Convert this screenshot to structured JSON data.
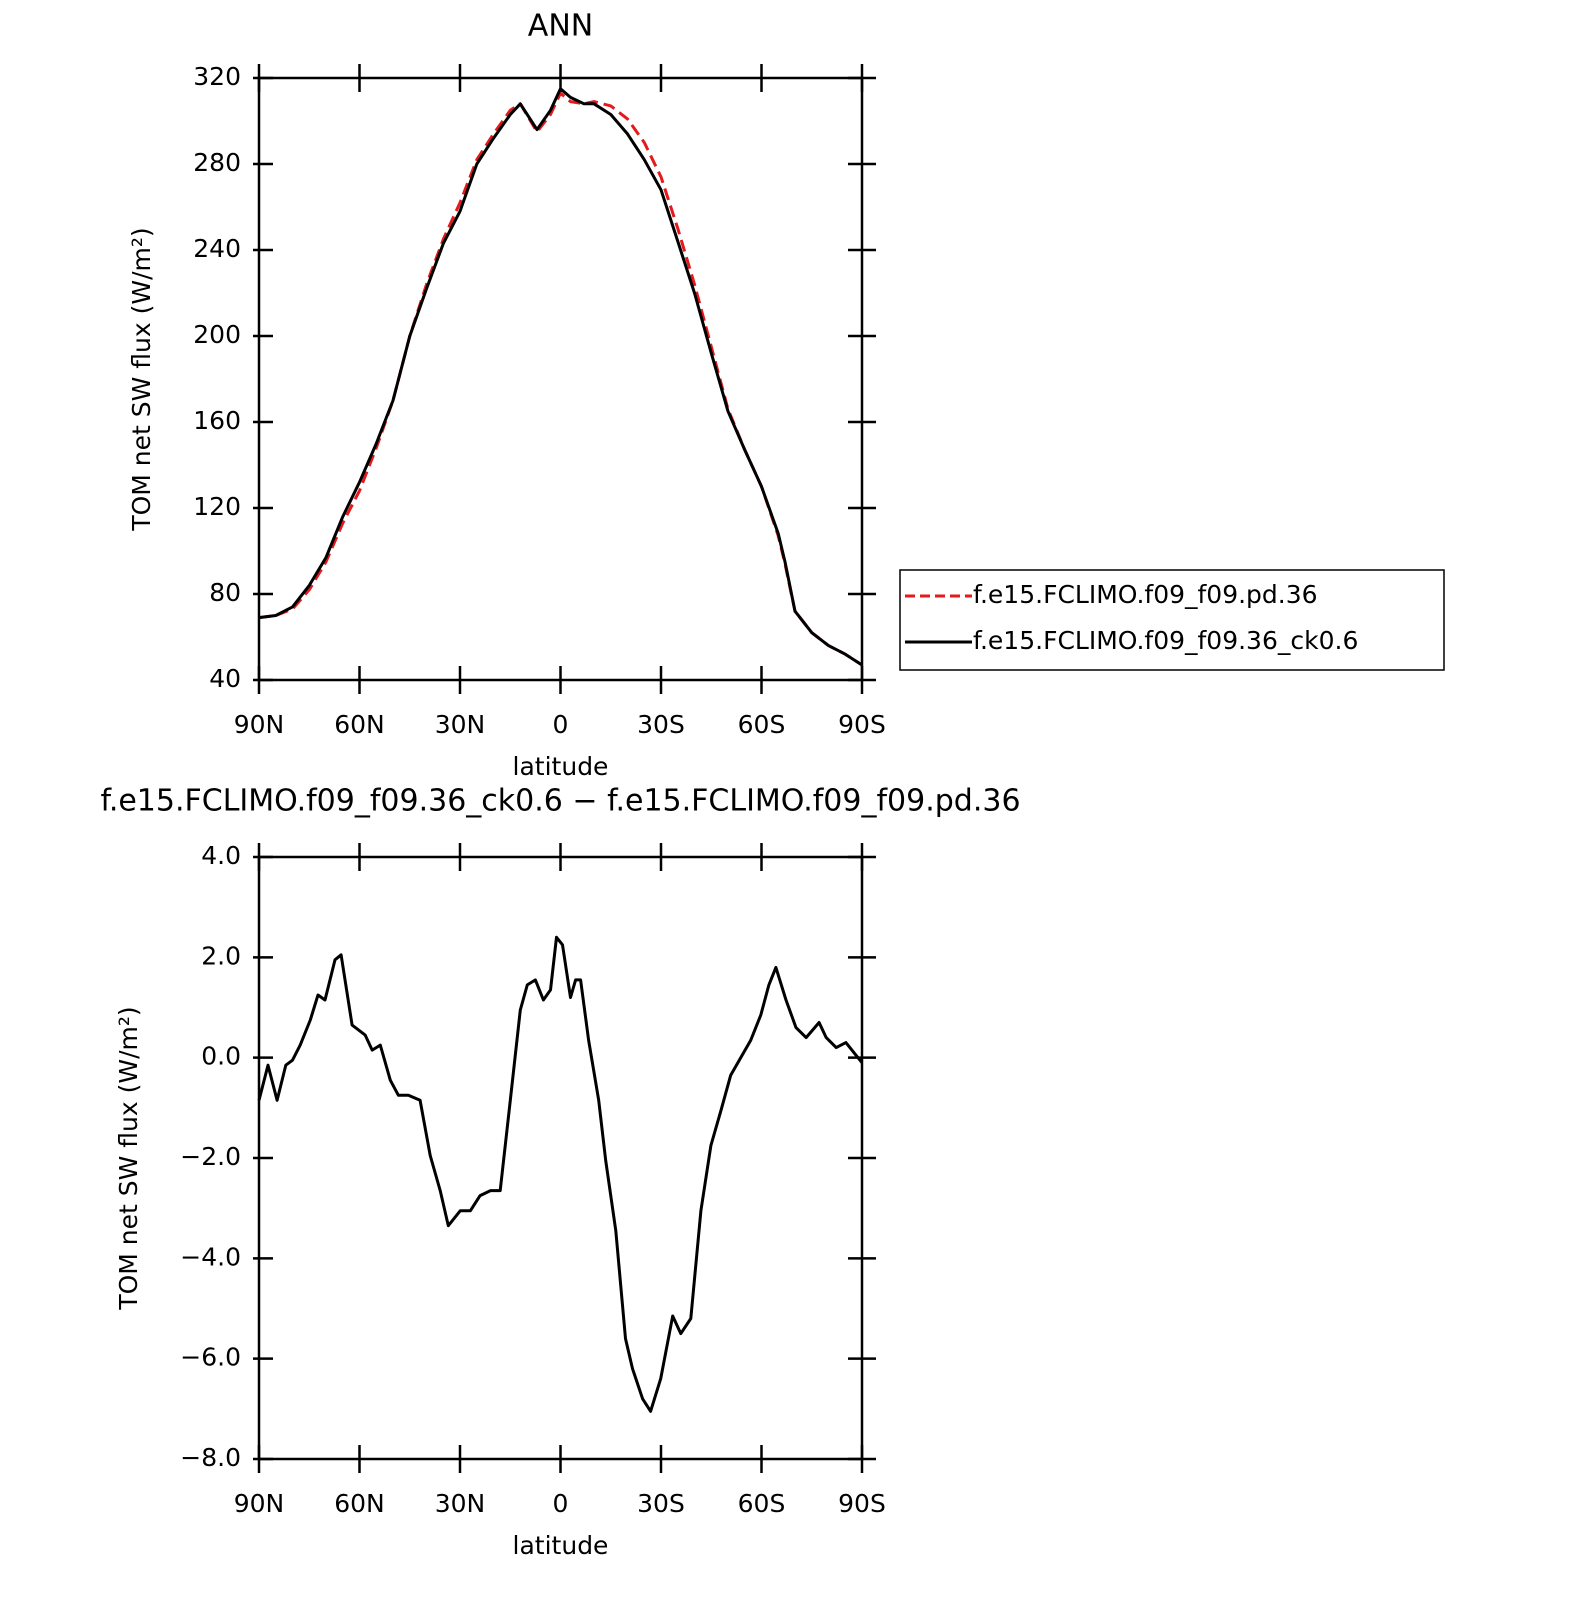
{
  "chart_data": [
    {
      "type": "line",
      "title": "ANN",
      "xlabel": "latitude",
      "ylabel": "TOM net SW flux (W/m²)",
      "x": [
        90,
        85,
        80,
        75,
        70,
        65,
        60,
        55,
        50,
        45,
        40,
        35,
        30,
        25,
        20,
        15,
        12,
        7,
        3,
        0,
        -3,
        -7,
        -10,
        -15,
        -20,
        -25,
        -30,
        -35,
        -40,
        -45,
        -50,
        -55,
        -60,
        -65,
        -67,
        -70,
        -75,
        -80,
        -85,
        -90
      ],
      "series": [
        {
          "name": "f.e15.FCLIMO.f09_f09.pd.36",
          "color": "#e41a1c",
          "linestyle": "dashed",
          "values": [
            69,
            70,
            73,
            82,
            95,
            113,
            128,
            148,
            170,
            200,
            224,
            245,
            262,
            282,
            294,
            305,
            308,
            295,
            303,
            313,
            309,
            308,
            309,
            307,
            301,
            290,
            274,
            250,
            224,
            195,
            166,
            147,
            130,
            107,
            94,
            72,
            62,
            56,
            52,
            47
          ]
        },
        {
          "name": "f.e15.FCLIMO.f09_f09.36_ck0.6",
          "color": "#000000",
          "linestyle": "solid",
          "values": [
            69,
            70,
            74,
            84,
            97,
            116,
            132,
            150,
            170,
            200,
            222,
            243,
            258,
            280,
            292,
            303,
            308,
            296,
            305,
            315,
            311,
            308,
            308,
            303,
            294,
            282,
            268,
            244,
            220,
            192,
            165,
            147,
            130,
            108,
            95,
            72,
            62,
            56,
            52,
            47
          ]
        }
      ],
      "xlim": [
        90,
        -90
      ],
      "xticks": [
        {
          "value": 90,
          "label": "90N"
        },
        {
          "value": 60,
          "label": "60N"
        },
        {
          "value": 30,
          "label": "30N"
        },
        0,
        {
          "value": -30,
          "label": "30S"
        },
        {
          "value": -60,
          "label": "60S"
        },
        {
          "value": -90,
          "label": "90S"
        }
      ],
      "ylim": [
        40,
        320
      ],
      "yticks": [
        40,
        80,
        120,
        160,
        200,
        240,
        280,
        320
      ],
      "legend": "right"
    },
    {
      "type": "line",
      "title": "f.e15.FCLIMO.f09_f09.36_ck0.6 − f.e15.FCLIMO.f09_f09.pd.36",
      "xlabel": "latitude",
      "ylabel": "TOM net SW flux (W/m²)",
      "x": [
        90,
        87.3,
        84.6,
        82,
        80,
        77.7,
        74.7,
        72.4,
        70.3,
        67.3,
        65.5,
        62.2,
        58.3,
        56.2,
        53.8,
        50.8,
        48.4,
        45.4,
        41.9,
        38.9,
        35.9,
        33.5,
        29.9,
        26.9,
        24,
        20.9,
        18,
        15,
        12,
        9.9,
        7.5,
        5.1,
        3,
        1.2,
        -0.6,
        -3,
        -4.5,
        -6,
        -8.4,
        -11.4,
        -13.5,
        -16.5,
        -19.4,
        -21.5,
        -24.5,
        -26.9,
        -29.9,
        -33.5,
        -35.9,
        -38.9,
        -41.9,
        -44.9,
        -47.9,
        -50.8,
        -53.8,
        -56.8,
        -59.8,
        -62.2,
        -64.3,
        -67.3,
        -70.3,
        -73.3,
        -77.2,
        -79.3,
        -82.3,
        -85.2,
        -88.2,
        -90
      ],
      "values": [
        -0.85,
        -0.15,
        -0.85,
        -0.15,
        -0.05,
        0.25,
        0.75,
        1.25,
        1.15,
        1.95,
        2.05,
        0.65,
        0.45,
        0.15,
        0.25,
        -0.45,
        -0.75,
        -0.75,
        -0.85,
        -1.95,
        -2.65,
        -3.35,
        -3.05,
        -3.05,
        -2.75,
        -2.65,
        -2.65,
        -0.85,
        0.95,
        1.45,
        1.55,
        1.15,
        1.35,
        2.4,
        2.25,
        1.2,
        1.55,
        1.55,
        0.35,
        -0.85,
        -2.05,
        -3.45,
        -5.6,
        -6.2,
        -6.8,
        -7.05,
        -6.4,
        -5.15,
        -5.5,
        -5.2,
        -3.05,
        -1.75,
        -1.05,
        -0.35,
        0,
        0.35,
        0.85,
        1.45,
        1.8,
        1.15,
        0.6,
        0.4,
        0.7,
        0.4,
        0.2,
        0.3,
        0.05,
        -0.1
      ],
      "color": "#000000",
      "linestyle": "solid",
      "xlim": [
        90,
        -90
      ],
      "xticks": [
        {
          "value": 90,
          "label": "90N"
        },
        {
          "value": 60,
          "label": "60N"
        },
        {
          "value": 30,
          "label": "30N"
        },
        0,
        {
          "value": -30,
          "label": "30S"
        },
        {
          "value": -60,
          "label": "60S"
        },
        {
          "value": -90,
          "label": "90S"
        }
      ],
      "ylim": [
        -8,
        4
      ],
      "yticks": [
        {
          "value": -8,
          "label": "−8.0"
        },
        {
          "value": -6,
          "label": "−6.0"
        },
        {
          "value": -4,
          "label": "−4.0"
        },
        {
          "value": -2,
          "label": "−2.0"
        },
        {
          "value": 0,
          "label": "0.0"
        },
        {
          "value": 2,
          "label": "2.0"
        },
        {
          "value": 4,
          "label": "4.0"
        }
      ]
    }
  ]
}
